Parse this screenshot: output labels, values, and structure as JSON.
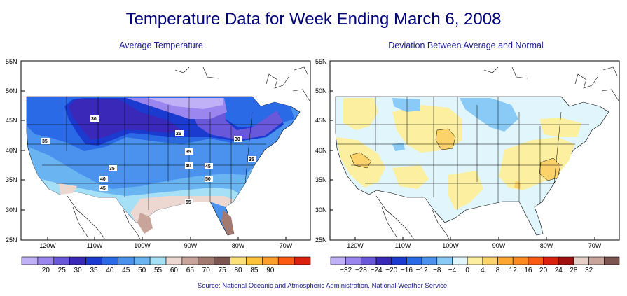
{
  "title": "Temperature Data for Week Ending March 6, 2008",
  "left_panel": {
    "subtitle": "Average Temperature",
    "lat_labels": [
      "55N",
      "50N",
      "45N",
      "40N",
      "35N",
      "30N",
      "25N"
    ],
    "lon_labels": [
      "120W",
      "110W",
      "100W",
      "90W",
      "80W",
      "70W"
    ],
    "colorbar": {
      "labels": [
        "20",
        "25",
        "30",
        "35",
        "40",
        "45",
        "50",
        "55",
        "60",
        "65",
        "70",
        "75",
        "80",
        "85",
        "90"
      ],
      "colors": [
        "#c0b0f6",
        "#9a86ee",
        "#6a58da",
        "#3a28b8",
        "#1a3ad0",
        "#2a6ae6",
        "#4a92ee",
        "#6ab4f2",
        "#a6e0f6",
        "#ecd8d0",
        "#c8a49a",
        "#a27a70",
        "#7c5450",
        "#fce07a",
        "#fcc43a",
        "#fc9e2a",
        "#fc5a10",
        "#dc2010"
      ]
    },
    "contour_labels": [
      "30",
      "35",
      "25",
      "30",
      "35",
      "35",
      "40",
      "45",
      "35",
      "40",
      "50",
      "45",
      "55"
    ]
  },
  "right_panel": {
    "subtitle": "Deviation Between Average and Normal",
    "lat_labels": [
      "55N",
      "50N",
      "45N",
      "40N",
      "35N",
      "30N",
      "25N"
    ],
    "lon_labels": [
      "120W",
      "110W",
      "100W",
      "90W",
      "80W",
      "70W"
    ],
    "colorbar": {
      "labels": [
        "−32",
        "−28",
        "−24",
        "−20",
        "−16",
        "−12",
        "−8",
        "−4",
        "0",
        "4",
        "8",
        "12",
        "16",
        "20",
        "24",
        "28",
        "32"
      ],
      "colors": [
        "#c0b0f6",
        "#9a86ee",
        "#6a58da",
        "#3a28b8",
        "#1a3ad0",
        "#2a6ae6",
        "#4a92ee",
        "#8acaf6",
        "#e0f6fc",
        "#fcf0a0",
        "#fcd26a",
        "#fca830",
        "#fc8a20",
        "#fc5a10",
        "#dc2010",
        "#a01010",
        "#e6d0c8",
        "#c8a49a",
        "#7c5450"
      ]
    }
  },
  "source": "Source:  National Oceanic and Atmospheric Administration, National Weather Service"
}
